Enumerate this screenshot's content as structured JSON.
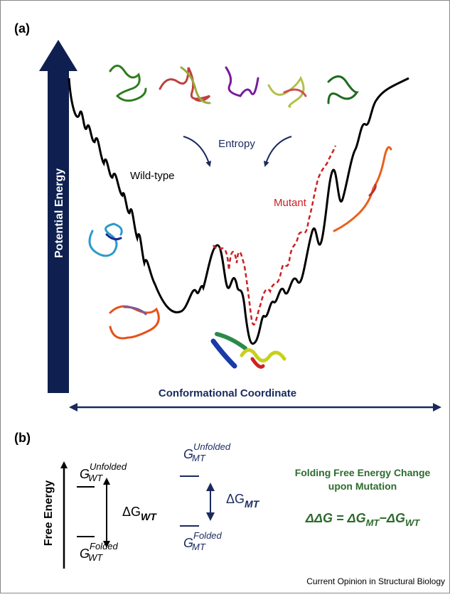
{
  "panel_a": {
    "label": "(a)",
    "y_axis": "Potential Energy",
    "x_axis": "Conformational Coordinate",
    "entropy": "Entropy",
    "wild_type": "Wild-type",
    "mutant": "Mutant"
  },
  "panel_b": {
    "label": "(b)",
    "y_axis": "Free Energy",
    "wt_unfolded": {
      "symbol": "G",
      "sub": "WT",
      "sup": "Unfolded"
    },
    "wt_folded": {
      "symbol": "G",
      "sub": "WT",
      "sup": "Folded"
    },
    "wt_delta": {
      "symbol": "ΔG",
      "sub": "WT"
    },
    "mt_unfolded": {
      "symbol": "G",
      "sub": "MT",
      "sup": "Unfolded"
    },
    "mt_folded": {
      "symbol": "G",
      "sub": "MT",
      "sup": "Folded"
    },
    "mt_delta": {
      "symbol": "ΔG",
      "sub": "MT"
    },
    "heading": [
      "Folding Free Energy Change",
      "upon Mutation"
    ],
    "equation": [
      "ΔΔG",
      " = ",
      "ΔG",
      "MT",
      "−",
      "ΔG",
      "WT"
    ]
  },
  "footer": "Current Opinion in Structural Biology"
}
